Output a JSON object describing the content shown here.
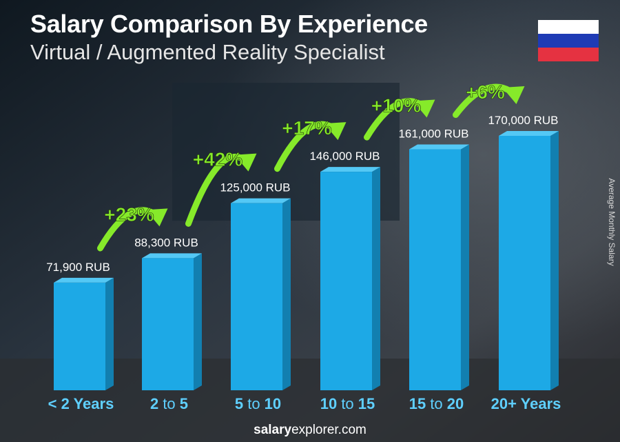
{
  "header": {
    "title": "Salary Comparison By Experience",
    "subtitle": "Virtual / Augmented Reality Specialist"
  },
  "flag": {
    "colors": [
      "#ffffff",
      "#1f3bb5",
      "#e53241"
    ]
  },
  "side_label": "Average Monthly Salary",
  "footer": {
    "brand_bold": "salary",
    "brand_rest": "explorer.com"
  },
  "colors": {
    "bar": "#1da9e6",
    "bar_dark": "#127fb0",
    "bar_top": "#54c8f5",
    "accent_green": "#86ea2a"
  },
  "chart_data": {
    "type": "bar",
    "title": "Salary Comparison By Experience",
    "subtitle": "Virtual / Augmented Reality Specialist",
    "ylabel": "Average Monthly Salary",
    "categories": [
      {
        "bold": "< 2 Years",
        "normal": ""
      },
      {
        "bold": "2",
        "normal": " to ",
        "bold2": "5"
      },
      {
        "bold": "5",
        "normal": " to ",
        "bold2": "10"
      },
      {
        "bold": "10",
        "normal": " to ",
        "bold2": "15"
      },
      {
        "bold": "15",
        "normal": " to ",
        "bold2": "20"
      },
      {
        "bold": "20+ Years",
        "normal": ""
      }
    ],
    "values": [
      71900,
      88300,
      125000,
      146000,
      161000,
      170000
    ],
    "value_labels": [
      "71,900 RUB",
      "88,300 RUB",
      "125,000 RUB",
      "146,000 RUB",
      "161,000 RUB",
      "170,000 RUB"
    ],
    "changes": [
      "+23%",
      "+42%",
      "+17%",
      "+10%",
      "+6%"
    ],
    "ylim": [
      0,
      170000
    ],
    "grid": false
  }
}
